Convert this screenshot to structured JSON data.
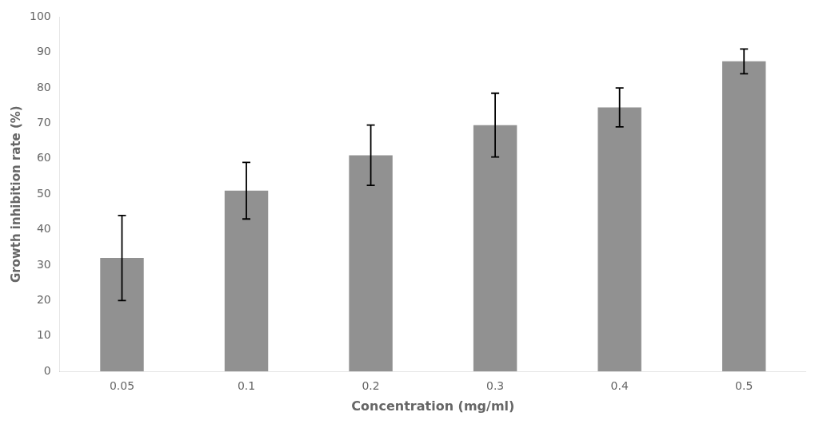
{
  "chart_data": {
    "type": "bar",
    "categories": [
      "0.05",
      "0.1",
      "0.2",
      "0.3",
      "0.4",
      "0.5"
    ],
    "values": [
      32.0,
      51.0,
      61.0,
      69.5,
      74.5,
      87.5
    ],
    "errors": [
      12.0,
      8.0,
      8.5,
      9.0,
      5.5,
      3.5
    ],
    "color": "#919191",
    "xlabel": "Concentration (mg/ml)",
    "ylabel": "Growth inhibition rate (%)",
    "ylim": [
      0,
      100
    ],
    "yticks": [
      0,
      10,
      20,
      30,
      40,
      50,
      60,
      70,
      80,
      90,
      100
    ],
    "grid": false
  }
}
